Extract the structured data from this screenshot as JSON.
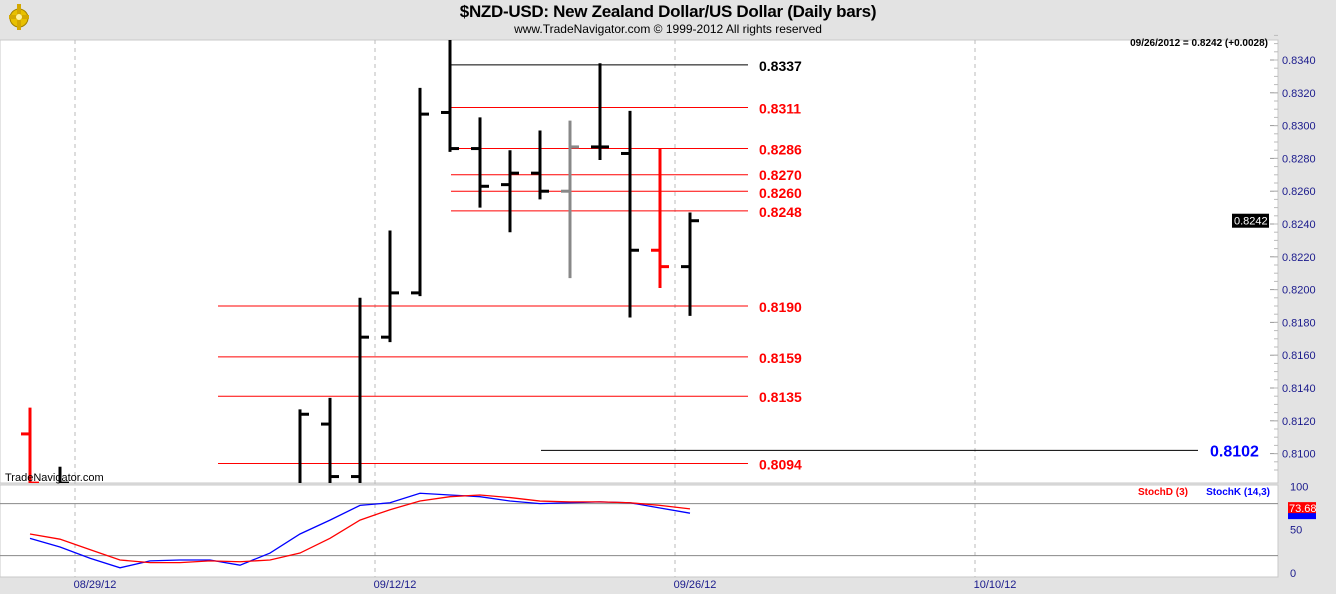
{
  "header": {
    "title": "$NZD-USD:  New Zealand Dollar/US Dollar  (Daily bars)",
    "subtitle": "www.TradeNavigator.com © 1999-2012 All rights reserved",
    "logo_icon": "trade-navigator-compass-logo"
  },
  "watermark": "TradeNavigator.com",
  "colors": {
    "up": "#000000",
    "down": "#ff0000",
    "neutral": "#888888",
    "stochD": "#ff0000",
    "stochK": "#0000ff",
    "axis_text": "#1a1a8c"
  },
  "chart_data": [
    {
      "type": "ohlc",
      "title": "$NZD-USD:  New Zealand Dollar/US Dollar  (Daily bars)",
      "readout": "09/26/2012 = 0.8242 (+0.0028)",
      "last_price_label": "0.8242",
      "ylim": [
        0.808,
        0.8355
      ],
      "yticks": [
        "0.8100",
        "0.8120",
        "0.8140",
        "0.8160",
        "0.8180",
        "0.8200",
        "0.8220",
        "0.8240",
        "0.8260",
        "0.8280",
        "0.8300",
        "0.8320",
        "0.8340"
      ],
      "xticks": [
        "08/29/12",
        "09/12/12",
        "09/26/12",
        "10/10/12"
      ],
      "grid": "vertical dashed at date ticks",
      "bars": [
        {
          "i": 0,
          "o": 0.8112,
          "h": 0.8128,
          "l": 0.808,
          "c": 0.8082,
          "color": "down"
        },
        {
          "i": 1,
          "o": 0.808,
          "h": 0.8092,
          "l": 0.808,
          "c": 0.8082,
          "color": "up"
        },
        {
          "i": 9,
          "o": null,
          "h": 0.8127,
          "l": 0.808,
          "c": 0.8124,
          "color": "up"
        },
        {
          "i": 10,
          "o": 0.8118,
          "h": 0.8134,
          "l": 0.808,
          "c": 0.8086,
          "color": "up"
        },
        {
          "i": 11,
          "o": 0.8086,
          "h": 0.8195,
          "l": 0.808,
          "c": 0.8171,
          "color": "up"
        },
        {
          "i": 12,
          "o": 0.8171,
          "h": 0.8236,
          "l": 0.8168,
          "c": 0.8198,
          "color": "up"
        },
        {
          "i": 13,
          "o": 0.8198,
          "h": 0.8323,
          "l": 0.8196,
          "c": 0.8307,
          "color": "up"
        },
        {
          "i": 14,
          "o": 0.8308,
          "h": 0.8355,
          "l": 0.8284,
          "c": 0.8286,
          "color": "up"
        },
        {
          "i": 15,
          "o": 0.8286,
          "h": 0.8305,
          "l": 0.825,
          "c": 0.8263,
          "color": "up"
        },
        {
          "i": 16,
          "o": 0.8264,
          "h": 0.8285,
          "l": 0.8235,
          "c": 0.8271,
          "color": "up"
        },
        {
          "i": 17,
          "o": 0.8271,
          "h": 0.8297,
          "l": 0.8255,
          "c": 0.826,
          "color": "up"
        },
        {
          "i": 18,
          "o": 0.826,
          "h": 0.8303,
          "l": 0.8207,
          "c": 0.8287,
          "color": "neutral"
        },
        {
          "i": 19,
          "o": 0.8287,
          "h": 0.8338,
          "l": 0.8279,
          "c": 0.8287,
          "color": "up"
        },
        {
          "i": 20,
          "o": 0.8283,
          "h": 0.8309,
          "l": 0.8183,
          "c": 0.8224,
          "color": "up"
        },
        {
          "i": 21,
          "o": 0.8224,
          "h": 0.8286,
          "l": 0.8201,
          "c": 0.8214,
          "color": "down"
        },
        {
          "i": 22,
          "o": 0.8214,
          "h": 0.8247,
          "l": 0.8184,
          "c": 0.8242,
          "color": "up"
        }
      ],
      "levels": [
        {
          "value": 0.8337,
          "label": "0.8337",
          "color": "#000000",
          "from_i": 14,
          "span": "short"
        },
        {
          "value": 0.8311,
          "label": "0.8311",
          "color": "#ff0000",
          "from_i": 14,
          "span": "short"
        },
        {
          "value": 0.8286,
          "label": "0.8286",
          "color": "#ff0000",
          "from_i": 14,
          "span": "short"
        },
        {
          "value": 0.827,
          "label": "0.8270",
          "color": "#ff0000",
          "from_i": 14,
          "span": "short"
        },
        {
          "value": 0.826,
          "label": "0.8260",
          "color": "#ff0000",
          "from_i": 14,
          "span": "short"
        },
        {
          "value": 0.8248,
          "label": "0.8248",
          "color": "#ff0000",
          "from_i": 14,
          "span": "short"
        },
        {
          "value": 0.819,
          "label": "0.8190",
          "color": "#ff0000",
          "from_i": 7,
          "span": "short"
        },
        {
          "value": 0.8159,
          "label": "0.8159",
          "color": "#ff0000",
          "from_i": 7,
          "span": "short"
        },
        {
          "value": 0.8135,
          "label": "0.8135",
          "color": "#ff0000",
          "from_i": 7,
          "span": "short"
        },
        {
          "value": 0.8094,
          "label": "0.8094",
          "color": "#ff0000",
          "from_i": 7,
          "span": "short"
        },
        {
          "value": 0.8102,
          "label": "0.8102",
          "color": "#000000",
          "label_color": "#0000ff",
          "from_i": 17,
          "span": "long"
        }
      ]
    },
    {
      "type": "line",
      "ylim": [
        0,
        100
      ],
      "yticks": [
        "0",
        "50",
        "100"
      ],
      "reference_lines": [
        20,
        80
      ],
      "legend": "top-right",
      "series": [
        {
          "name": "StochD (3)",
          "color": "#ff0000",
          "readout": "73.68",
          "values": [
            45,
            39,
            27,
            15,
            12,
            12,
            14,
            13,
            15,
            23,
            40,
            61,
            73,
            83,
            88,
            90,
            87,
            83,
            82,
            82,
            81,
            78,
            74
          ]
        },
        {
          "name": "StochK (14,3)",
          "color": "#0000ff",
          "values": [
            40,
            30,
            17,
            6,
            14,
            15,
            15,
            9,
            23,
            45,
            61,
            78,
            81,
            92,
            90,
            88,
            83,
            80,
            81,
            82,
            81,
            75,
            69
          ]
        }
      ]
    }
  ]
}
